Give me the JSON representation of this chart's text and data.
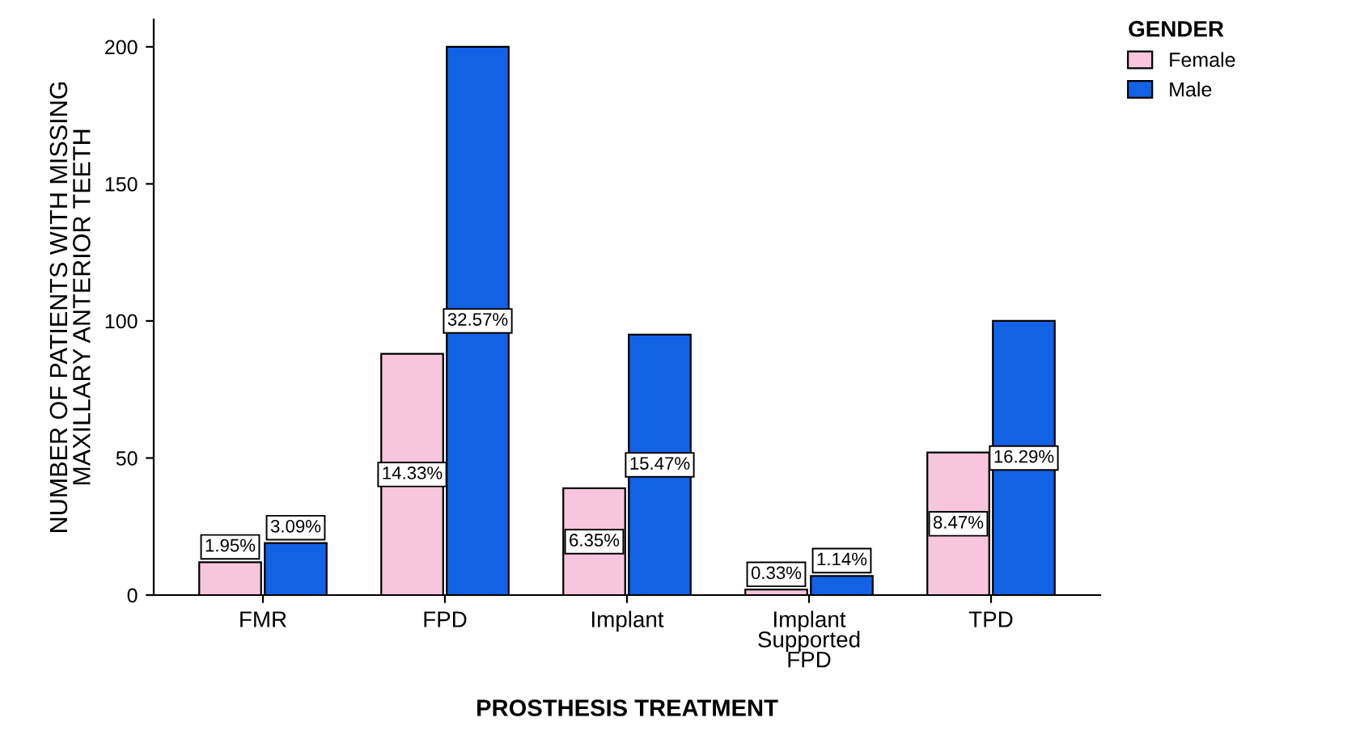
{
  "chart_data": {
    "type": "bar",
    "xlabel": "PROSTHESIS TREATMENT",
    "ylabel": "NUMBER OF PATIENTS WITH MISSING\nMAXILLARY ANTERIOR TEETH",
    "legend_title": "GENDER",
    "categories": [
      "FMR",
      "FPD",
      "Implant",
      "Implant\nSupported\nFPD",
      "TPD"
    ],
    "series": [
      {
        "name": "Female",
        "color": "#f8c6dc",
        "values": [
          12,
          88,
          39,
          2,
          52
        ]
      },
      {
        "name": "Male",
        "color": "#1262e6",
        "values": [
          19,
          200,
          95,
          7,
          100
        ]
      }
    ],
    "annotations": [
      "1.95%",
      "14.33%",
      "6.35%",
      "0.33%",
      "8.47%",
      "3.09%",
      "32.57%",
      "15.47%",
      "1.14%",
      "16.29%"
    ],
    "ylim": [
      0,
      210
    ],
    "yticks": [
      0,
      50,
      100,
      150,
      200
    ],
    "grid": false,
    "legend": "top right"
  }
}
